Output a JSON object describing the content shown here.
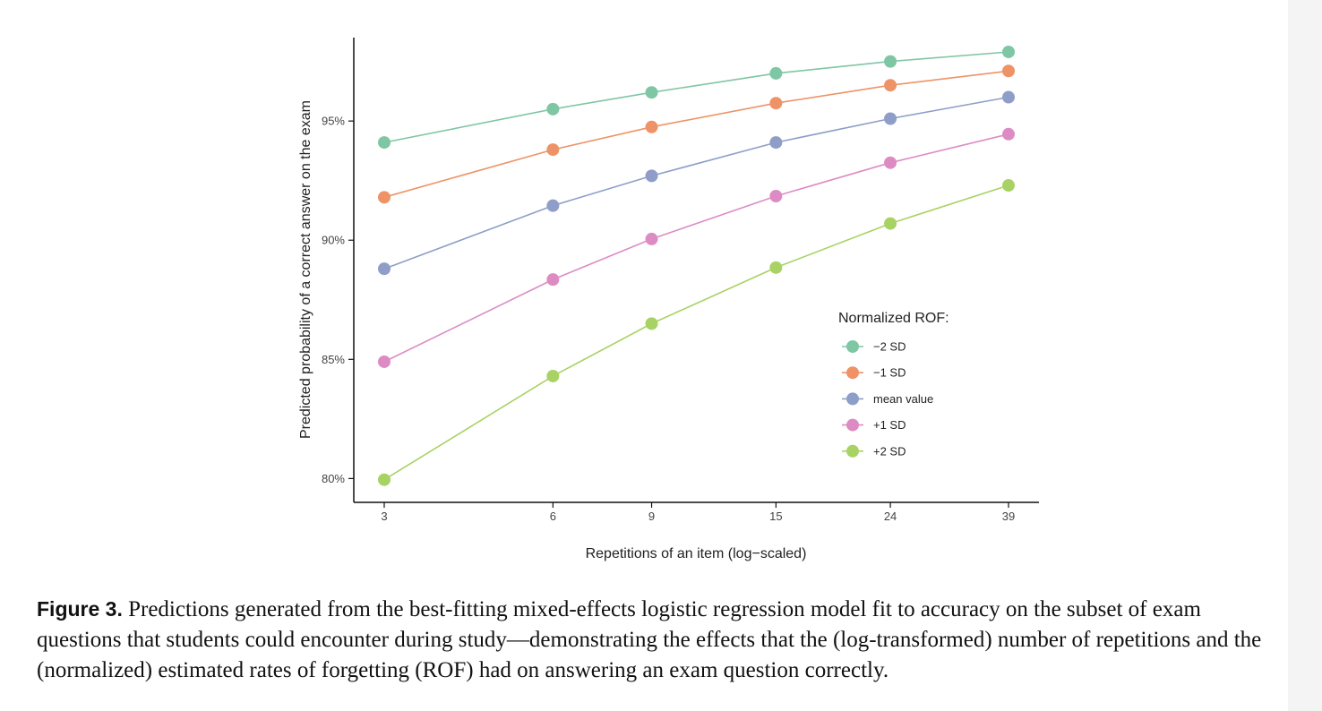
{
  "figure": {
    "label": "Figure 3.",
    "caption": " Predictions generated from the best-fitting mixed-effects logistic regression model fit to accuracy on the subset of exam questions that students could encounter during study—demonstrating the effects that the (log-transformed) number of repetitions and the (normalized) estimated rates of forgetting (ROF) had on answering an exam question correctly."
  },
  "chart_data": {
    "type": "line",
    "title": "",
    "xlabel": "Repetitions of an item (log−scaled)",
    "ylabel": "Predicted probability of a correct answer on the exam",
    "x_scale": "log",
    "x": [
      3,
      6,
      9,
      15,
      24,
      39
    ],
    "x_tick_labels": [
      "3",
      "6",
      "9",
      "15",
      "24",
      "39"
    ],
    "y_ticks": [
      80,
      85,
      90,
      95
    ],
    "y_tick_labels": [
      "80%",
      "85%",
      "90%",
      "95%"
    ],
    "ylim": [
      79,
      98.5
    ],
    "legend": {
      "title": "Normalized ROF:",
      "position": "right-inside"
    },
    "grid": false,
    "series": [
      {
        "name": "−2 SD",
        "color": "#7fc6a4",
        "values": [
          94.1,
          95.5,
          96.2,
          97.0,
          97.5,
          97.9
        ]
      },
      {
        "name": "−1 SD",
        "color": "#ee9367",
        "values": [
          91.8,
          93.8,
          94.75,
          95.75,
          96.5,
          97.1
        ]
      },
      {
        "name": "mean value",
        "color": "#8f9ec8",
        "values": [
          88.8,
          91.45,
          92.7,
          94.1,
          95.1,
          96.0
        ]
      },
      {
        "name": "+1 SD",
        "color": "#dd8cc3",
        "values": [
          84.9,
          88.35,
          90.05,
          91.85,
          93.25,
          94.45
        ]
      },
      {
        "name": "+2 SD",
        "color": "#a9d264",
        "values": [
          79.95,
          84.3,
          86.5,
          88.85,
          90.7,
          92.3
        ]
      }
    ]
  }
}
